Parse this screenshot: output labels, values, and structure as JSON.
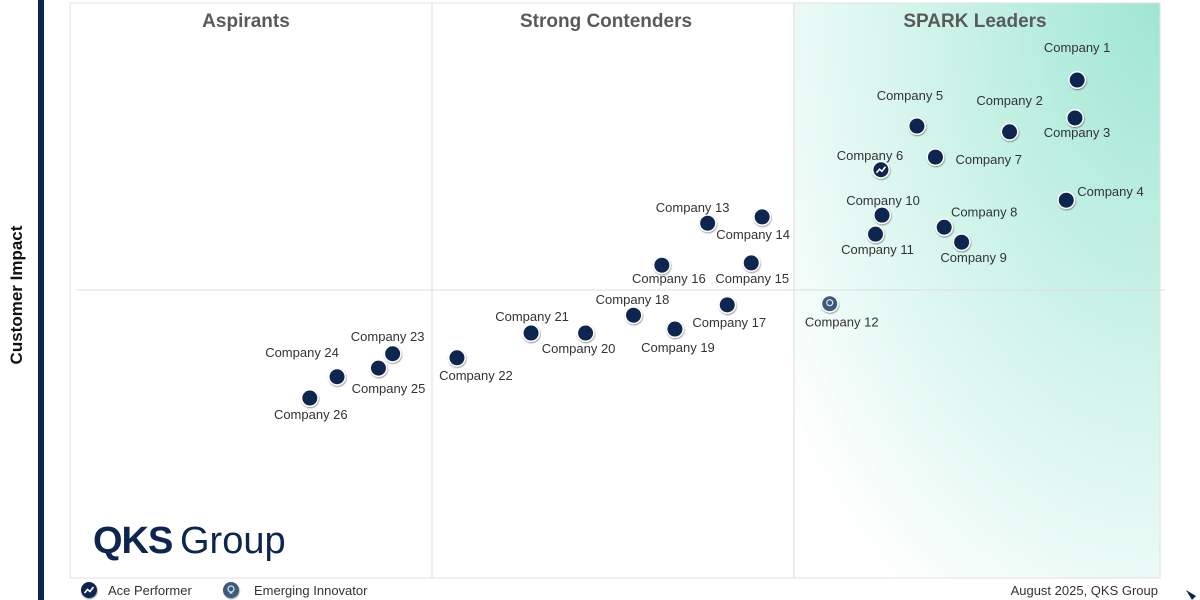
{
  "chart_data": {
    "type": "scatter",
    "ylabel": "Customer Impact",
    "xlim": [
      0,
      100
    ],
    "ylim": [
      0,
      100
    ],
    "grid": false,
    "quadrants": [
      "Aspirants",
      "Strong Contenders",
      "SPARK Leaders"
    ],
    "legend": {
      "placement": "bottom-left",
      "items": [
        {
          "key": "ace",
          "label": "Ace Performer",
          "icon": "trend-up-icon"
        },
        {
          "key": "innovator",
          "label": "Emerging Innovator",
          "icon": "lightbulb-icon"
        }
      ]
    },
    "footer": "August 2025, QKS Group",
    "logo": "QKS Group",
    "colors": {
      "dot": "#0d2650",
      "leaders_gradient": "#9fe6d2",
      "sidebar_bar": "#0d2650"
    },
    "points": [
      {
        "name": "Company 1",
        "x": 92.4,
        "y": 86.6
      },
      {
        "name": "Company 2",
        "x": 86.2,
        "y": 77.6
      },
      {
        "name": "Company 3",
        "x": 92.2,
        "y": 80.0
      },
      {
        "name": "Company 4",
        "x": 91.4,
        "y": 65.7
      },
      {
        "name": "Company 5",
        "x": 77.7,
        "y": 78.6
      },
      {
        "name": "Company 6",
        "x": 74.4,
        "y": 71.0,
        "badge": "ace"
      },
      {
        "name": "Company 7",
        "x": 79.4,
        "y": 73.2
      },
      {
        "name": "Company 8",
        "x": 80.2,
        "y": 61.0
      },
      {
        "name": "Company 9",
        "x": 81.8,
        "y": 58.4
      },
      {
        "name": "Company 10",
        "x": 74.5,
        "y": 63.1
      },
      {
        "name": "Company 11",
        "x": 73.9,
        "y": 59.8
      },
      {
        "name": "Company 12",
        "x": 69.7,
        "y": 47.7,
        "badge": "innovator"
      },
      {
        "name": "Company 13",
        "x": 58.5,
        "y": 61.7
      },
      {
        "name": "Company 14",
        "x": 63.5,
        "y": 62.8
      },
      {
        "name": "Company 15",
        "x": 62.5,
        "y": 54.8
      },
      {
        "name": "Company 16",
        "x": 54.3,
        "y": 54.4
      },
      {
        "name": "Company 17",
        "x": 60.3,
        "y": 47.5
      },
      {
        "name": "Company 18",
        "x": 51.7,
        "y": 45.7
      },
      {
        "name": "Company 19",
        "x": 55.5,
        "y": 43.3
      },
      {
        "name": "Company 20",
        "x": 47.3,
        "y": 42.6
      },
      {
        "name": "Company 21",
        "x": 42.3,
        "y": 42.6
      },
      {
        "name": "Company 22",
        "x": 35.5,
        "y": 38.3
      },
      {
        "name": "Company 23",
        "x": 29.6,
        "y": 39.0
      },
      {
        "name": "Company 24",
        "x": 24.5,
        "y": 35.0
      },
      {
        "name": "Company 25",
        "x": 28.3,
        "y": 36.5
      },
      {
        "name": "Company 26",
        "x": 22.0,
        "y": 31.3
      }
    ]
  }
}
